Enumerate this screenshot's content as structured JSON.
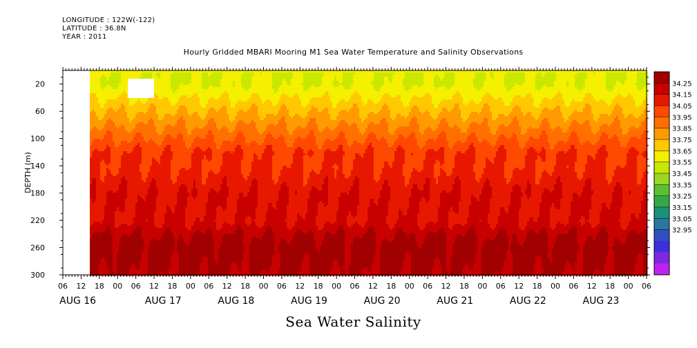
{
  "header": {
    "longitude": "LONGITUDE : 122W(-122)",
    "latitude": "LATITUDE : 36.8N",
    "year": "YEAR : 2011"
  },
  "chart_data": {
    "type": "heatmap",
    "title": "Hourly Gridded MBARI Mooring M1 Sea Water Temperature and Salinity Observations",
    "subtitle": "Sea Water Salinity",
    "ylabel": "DEPTH (m)",
    "ylim": [
      300,
      0
    ],
    "y_ticks": [
      20,
      60,
      100,
      140,
      180,
      220,
      260,
      300
    ],
    "x_hour_ticks": [
      "06",
      "12",
      "18",
      "00",
      "06",
      "12",
      "18",
      "00",
      "06",
      "12",
      "18",
      "00",
      "06",
      "12",
      "18",
      "00",
      "06",
      "12",
      "18",
      "00",
      "06",
      "12",
      "18",
      "00",
      "06",
      "12",
      "18",
      "00",
      "06",
      "12",
      "18",
      "00",
      "06"
    ],
    "x_day_labels": [
      "AUG 16",
      "AUG 17",
      "AUG 18",
      "AUG 19",
      "AUG 20",
      "AUG 21",
      "AUG 22",
      "AUG 23"
    ],
    "colorbar": {
      "levels": [
        "34.25",
        "34.15",
        "34.05",
        "33.95",
        "33.85",
        "33.75",
        "33.65",
        "33.55",
        "33.45",
        "33.35",
        "33.25",
        "33.15",
        "33.05",
        "32.95"
      ],
      "colors": [
        "#a00000",
        "#c80000",
        "#e81800",
        "#ff4800",
        "#ff7000",
        "#ff9a00",
        "#ffc800",
        "#f4f000",
        "#c8e800",
        "#98d820",
        "#5cc030",
        "#34a848",
        "#1c9078",
        "#2a78a0",
        "#3050c0",
        "#3c30d8",
        "#8028e0",
        "#c020f0"
      ]
    },
    "depth_profile": [
      {
        "depth": 5,
        "salinity": 33.55
      },
      {
        "depth": 20,
        "salinity": 33.55
      },
      {
        "depth": 40,
        "salinity": 33.65
      },
      {
        "depth": 60,
        "salinity": 33.75
      },
      {
        "depth": 80,
        "salinity": 33.85
      },
      {
        "depth": 100,
        "salinity": 33.95
      },
      {
        "depth": 120,
        "salinity": 34.05
      },
      {
        "depth": 140,
        "salinity": 34.05
      },
      {
        "depth": 180,
        "salinity": 34.15
      },
      {
        "depth": 220,
        "salinity": 34.15
      },
      {
        "depth": 240,
        "salinity": 34.25
      },
      {
        "depth": 260,
        "salinity": 34.3
      },
      {
        "depth": 300,
        "salinity": 34.25
      }
    ],
    "missing_data": "AUG 16 06-12 all depths; AUG 17 ~00-06 near 20 m"
  }
}
